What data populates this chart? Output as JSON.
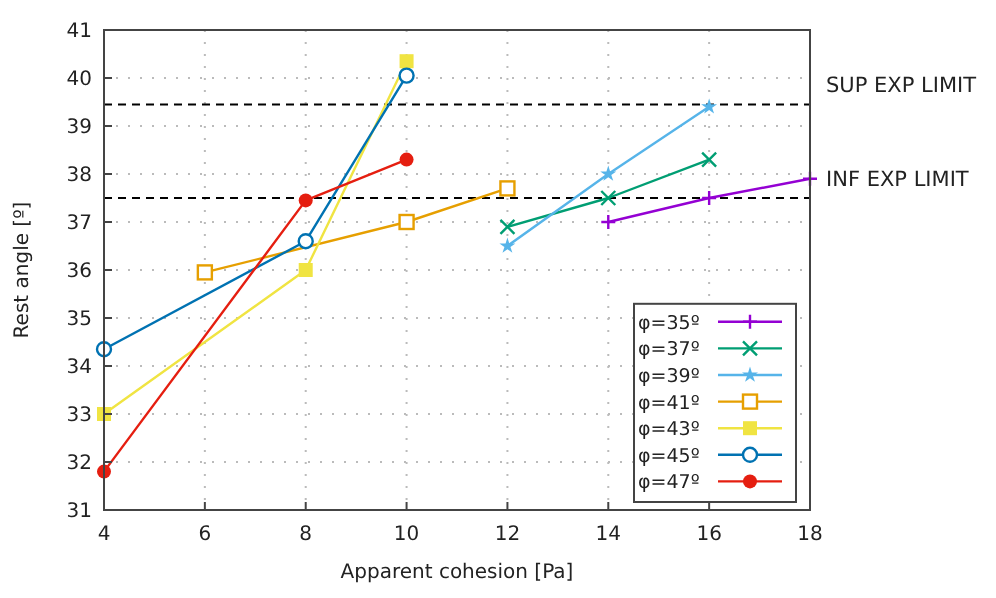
{
  "chart_data": {
    "type": "line",
    "xlabel": "Apparent cohesion [Pa]",
    "ylabel": "Rest angle [º]",
    "xlim": [
      4,
      18
    ],
    "xticks": [
      4,
      6,
      8,
      10,
      12,
      14,
      16,
      18
    ],
    "ylim": [
      31,
      41
    ],
    "yticks": [
      31,
      32,
      33,
      34,
      35,
      36,
      37,
      38,
      39,
      40,
      41
    ],
    "grid": true,
    "legend": "bottom right",
    "series": [
      {
        "name": "φ=35º",
        "color": "#9400d3",
        "marker": "plus",
        "x": [
          14,
          16,
          18
        ],
        "values": [
          37.0,
          37.5,
          37.9
        ]
      },
      {
        "name": "φ=37º",
        "color": "#009e73",
        "marker": "cross",
        "x": [
          12,
          14,
          16
        ],
        "values": [
          36.9,
          37.5,
          38.3
        ]
      },
      {
        "name": "φ=39º",
        "color": "#56b4e9",
        "marker": "star",
        "x": [
          12,
          14,
          16
        ],
        "values": [
          36.5,
          38.0,
          39.4
        ]
      },
      {
        "name": "φ=41º",
        "color": "#e69f00",
        "marker": "square-open",
        "x": [
          6,
          10,
          12
        ],
        "values": [
          35.95,
          37.0,
          37.7
        ]
      },
      {
        "name": "φ=43º",
        "color": "#f0e442",
        "marker": "square",
        "x": [
          4,
          8,
          10
        ],
        "values": [
          33.0,
          36.0,
          40.35
        ]
      },
      {
        "name": "φ=45º",
        "color": "#0072b2",
        "marker": "circle-open",
        "x": [
          4,
          8,
          10
        ],
        "values": [
          34.35,
          36.6,
          40.05
        ]
      },
      {
        "name": "φ=47º",
        "color": "#e51e10",
        "marker": "circle",
        "x": [
          4,
          8,
          10
        ],
        "values": [
          31.8,
          37.45,
          38.3
        ]
      }
    ],
    "ref_lines": [
      {
        "axis": "y",
        "value": 39.45,
        "label": "SUP EXP LIMIT",
        "color": "#000000",
        "line_style": "dashed"
      },
      {
        "axis": "y",
        "value": 37.5,
        "label": "INF EXP LIMIT",
        "color": "#000000",
        "line_style": "dashed"
      }
    ]
  }
}
